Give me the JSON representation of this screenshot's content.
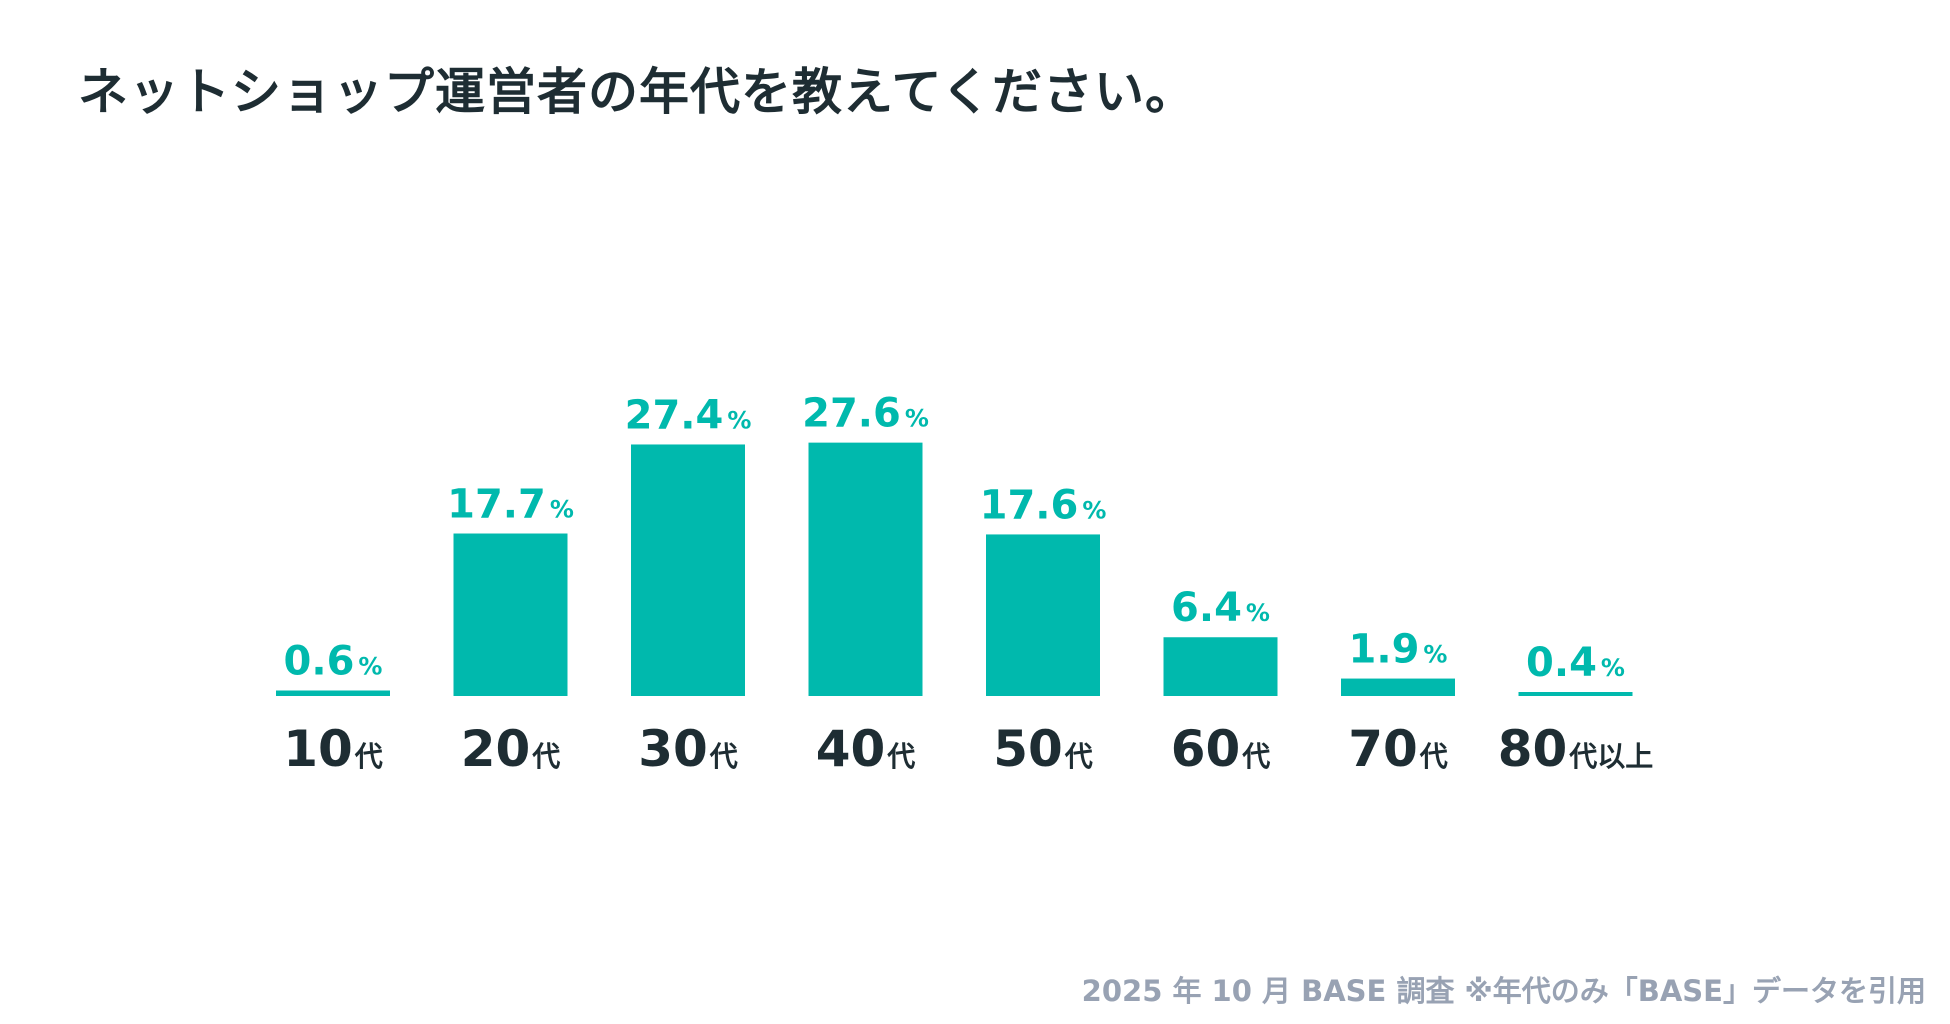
{
  "title": "ネットショップ運営者の年代を教えてください。",
  "source_note": "2025 年 10 月 BASE 調査 ※年代のみ「BASE」データを引用",
  "colors": {
    "bar": "#00b9ad",
    "value_label": "#00b9ad",
    "category_label": "#1e2d33",
    "title": "#1e2d33",
    "note": "#98a2b3",
    "background": "#ffffff"
  },
  "chart_data": {
    "type": "bar",
    "title": "ネットショップ運営者の年代を教えてください。",
    "xlabel": "",
    "ylabel": "",
    "unit": "%",
    "ylim": [
      0,
      30
    ],
    "grid": false,
    "legend": "none",
    "categories": [
      {
        "num": "10",
        "suffix": "代"
      },
      {
        "num": "20",
        "suffix": "代"
      },
      {
        "num": "30",
        "suffix": "代"
      },
      {
        "num": "40",
        "suffix": "代"
      },
      {
        "num": "50",
        "suffix": "代"
      },
      {
        "num": "60",
        "suffix": "代"
      },
      {
        "num": "70",
        "suffix": "代"
      },
      {
        "num": "80",
        "suffix": "代以上"
      }
    ],
    "values": [
      0.6,
      17.7,
      27.4,
      27.6,
      17.6,
      6.4,
      1.9,
      0.4
    ],
    "value_labels": [
      "0.6",
      "17.7",
      "27.4",
      "27.6",
      "17.6",
      "6.4",
      "1.9",
      "0.4"
    ]
  }
}
